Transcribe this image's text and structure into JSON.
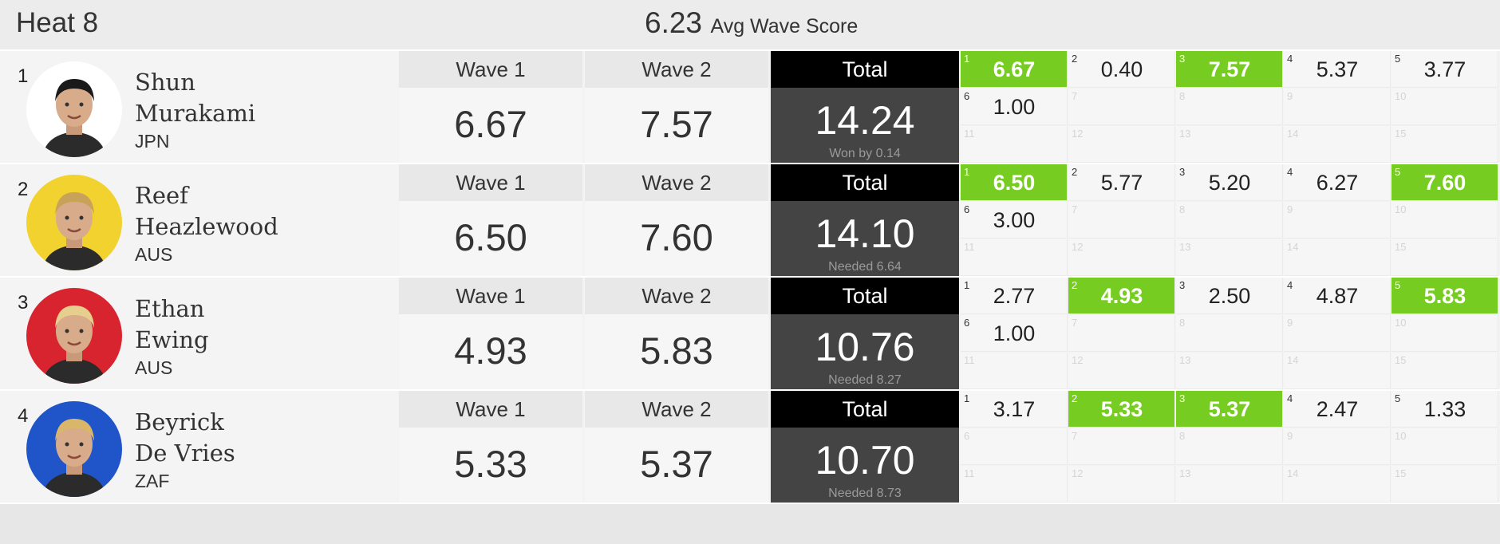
{
  "heat": {
    "title": "Heat 8",
    "avg_score": "6.23",
    "avg_label": "Avg Wave Score"
  },
  "labels": {
    "wave1": "Wave 1",
    "wave2": "Wave 2",
    "total": "Total"
  },
  "colors": {
    "highlight": "#77cc22",
    "total_bg": "#444444",
    "total_head": "#000000"
  },
  "athletes": [
    {
      "rank": "1",
      "first": "Shun",
      "last": "Murakami",
      "country": "JPN",
      "wave1": "6.67",
      "wave2": "7.57",
      "total": "14.24",
      "note": "Won by 0.14",
      "avatar_color": "#ffffff",
      "waves": [
        {
          "n": "1",
          "score": "6.67",
          "hi": true
        },
        {
          "n": "2",
          "score": "0.40",
          "hi": false
        },
        {
          "n": "3",
          "score": "7.57",
          "hi": true
        },
        {
          "n": "4",
          "score": "5.37",
          "hi": false
        },
        {
          "n": "5",
          "score": "3.77",
          "hi": false
        },
        {
          "n": "6",
          "score": "1.00",
          "hi": false
        },
        {
          "n": "7",
          "score": "",
          "hi": false
        },
        {
          "n": "8",
          "score": "",
          "hi": false
        },
        {
          "n": "9",
          "score": "",
          "hi": false
        },
        {
          "n": "10",
          "score": "",
          "hi": false
        },
        {
          "n": "11",
          "score": "",
          "hi": false
        },
        {
          "n": "12",
          "score": "",
          "hi": false
        },
        {
          "n": "13",
          "score": "",
          "hi": false
        },
        {
          "n": "14",
          "score": "",
          "hi": false
        },
        {
          "n": "15",
          "score": "",
          "hi": false
        }
      ]
    },
    {
      "rank": "2",
      "first": "Reef",
      "last": "Heazlewood",
      "country": "AUS",
      "wave1": "6.50",
      "wave2": "7.60",
      "total": "14.10",
      "note": "Needed 6.64",
      "avatar_color": "#f2d22e",
      "waves": [
        {
          "n": "1",
          "score": "6.50",
          "hi": true
        },
        {
          "n": "2",
          "score": "5.77",
          "hi": false
        },
        {
          "n": "3",
          "score": "5.20",
          "hi": false
        },
        {
          "n": "4",
          "score": "6.27",
          "hi": false
        },
        {
          "n": "5",
          "score": "7.60",
          "hi": true
        },
        {
          "n": "6",
          "score": "3.00",
          "hi": false
        },
        {
          "n": "7",
          "score": "",
          "hi": false
        },
        {
          "n": "8",
          "score": "",
          "hi": false
        },
        {
          "n": "9",
          "score": "",
          "hi": false
        },
        {
          "n": "10",
          "score": "",
          "hi": false
        },
        {
          "n": "11",
          "score": "",
          "hi": false
        },
        {
          "n": "12",
          "score": "",
          "hi": false
        },
        {
          "n": "13",
          "score": "",
          "hi": false
        },
        {
          "n": "14",
          "score": "",
          "hi": false
        },
        {
          "n": "15",
          "score": "",
          "hi": false
        }
      ]
    },
    {
      "rank": "3",
      "first": "Ethan",
      "last": "Ewing",
      "country": "AUS",
      "wave1": "4.93",
      "wave2": "5.83",
      "total": "10.76",
      "note": "Needed 8.27",
      "avatar_color": "#d8242e",
      "waves": [
        {
          "n": "1",
          "score": "2.77",
          "hi": false
        },
        {
          "n": "2",
          "score": "4.93",
          "hi": true
        },
        {
          "n": "3",
          "score": "2.50",
          "hi": false
        },
        {
          "n": "4",
          "score": "4.87",
          "hi": false
        },
        {
          "n": "5",
          "score": "5.83",
          "hi": true
        },
        {
          "n": "6",
          "score": "1.00",
          "hi": false
        },
        {
          "n": "7",
          "score": "",
          "hi": false
        },
        {
          "n": "8",
          "score": "",
          "hi": false
        },
        {
          "n": "9",
          "score": "",
          "hi": false
        },
        {
          "n": "10",
          "score": "",
          "hi": false
        },
        {
          "n": "11",
          "score": "",
          "hi": false
        },
        {
          "n": "12",
          "score": "",
          "hi": false
        },
        {
          "n": "13",
          "score": "",
          "hi": false
        },
        {
          "n": "14",
          "score": "",
          "hi": false
        },
        {
          "n": "15",
          "score": "",
          "hi": false
        }
      ]
    },
    {
      "rank": "4",
      "first": "Beyrick",
      "last": "De Vries",
      "country": "ZAF",
      "wave1": "5.33",
      "wave2": "5.37",
      "total": "10.70",
      "note": "Needed 8.73",
      "avatar_color": "#1f55c8",
      "waves": [
        {
          "n": "1",
          "score": "3.17",
          "hi": false
        },
        {
          "n": "2",
          "score": "5.33",
          "hi": true
        },
        {
          "n": "3",
          "score": "5.37",
          "hi": true
        },
        {
          "n": "4",
          "score": "2.47",
          "hi": false
        },
        {
          "n": "5",
          "score": "1.33",
          "hi": false
        },
        {
          "n": "6",
          "score": "",
          "hi": false
        },
        {
          "n": "7",
          "score": "",
          "hi": false
        },
        {
          "n": "8",
          "score": "",
          "hi": false
        },
        {
          "n": "9",
          "score": "",
          "hi": false
        },
        {
          "n": "10",
          "score": "",
          "hi": false
        },
        {
          "n": "11",
          "score": "",
          "hi": false
        },
        {
          "n": "12",
          "score": "",
          "hi": false
        },
        {
          "n": "13",
          "score": "",
          "hi": false
        },
        {
          "n": "14",
          "score": "",
          "hi": false
        },
        {
          "n": "15",
          "score": "",
          "hi": false
        }
      ]
    }
  ]
}
